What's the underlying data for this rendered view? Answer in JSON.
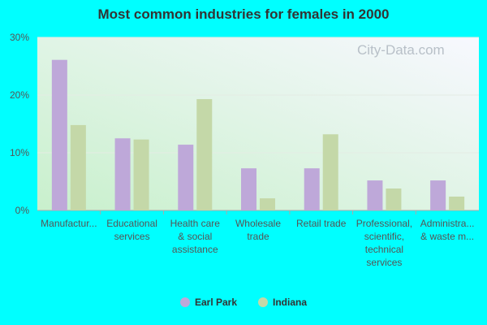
{
  "chart_data": {
    "type": "bar",
    "title": "Most common industries for females in 2000",
    "categories": [
      [
        "Manufactur..."
      ],
      [
        "Educational",
        "services"
      ],
      [
        "Health care",
        "& social",
        "assistance"
      ],
      [
        "Wholesale",
        "trade"
      ],
      [
        "Retail trade"
      ],
      [
        "Professional,",
        "scientific,",
        "technical",
        "services"
      ],
      [
        "Administra...",
        "& waste m..."
      ]
    ],
    "series": [
      {
        "name": "Earl Park",
        "color": "#bea8d9",
        "values": [
          26.1,
          12.5,
          11.4,
          7.3,
          7.3,
          5.2,
          5.2
        ]
      },
      {
        "name": "Indiana",
        "color": "#c4d8a8",
        "values": [
          14.8,
          12.3,
          19.3,
          2.1,
          13.2,
          3.8,
          2.4
        ]
      }
    ],
    "ylim": [
      0,
      30
    ],
    "yticks": [
      0,
      10,
      20,
      30
    ],
    "ytick_labels": [
      "0%",
      "10%",
      "20%",
      "30%"
    ],
    "grid": true,
    "legend": "bottom"
  },
  "watermark": "City-Data.com"
}
